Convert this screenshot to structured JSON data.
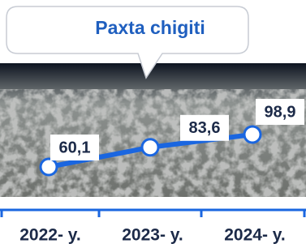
{
  "chart_data": {
    "type": "line",
    "title": "Paxta chigiti",
    "categories": [
      "2022- y.",
      "2023- y.",
      "2024- y."
    ],
    "values": [
      60.1,
      83.6,
      98.9
    ],
    "value_labels": [
      "60,1",
      "83,6",
      "98,9"
    ],
    "color": "#1a66e0"
  }
}
